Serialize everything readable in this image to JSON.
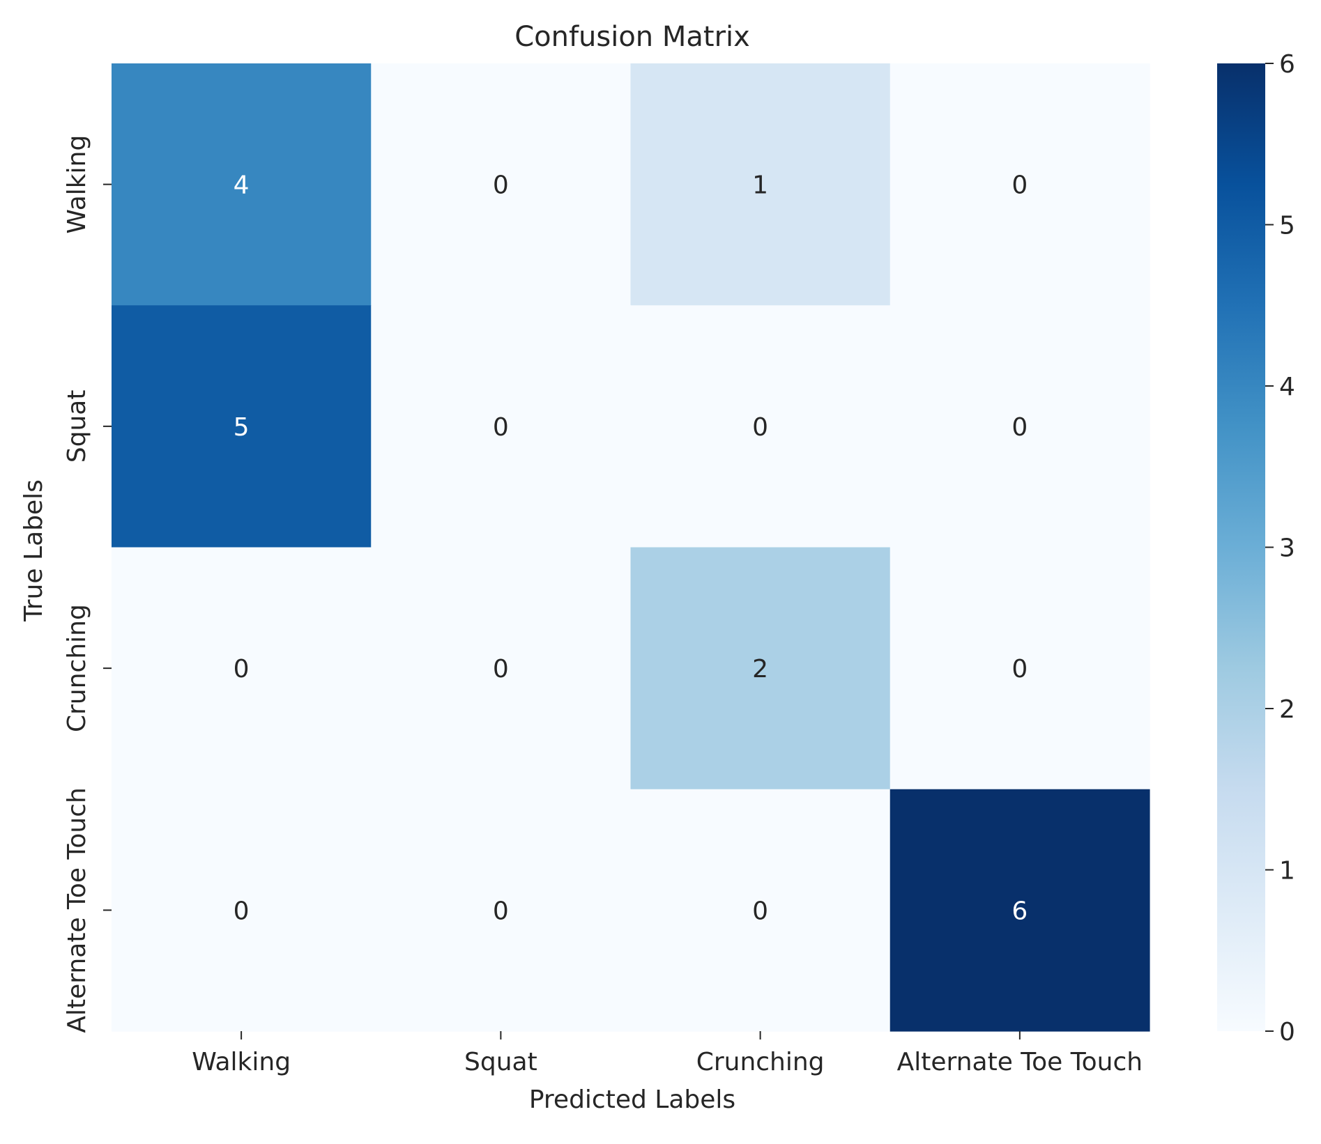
{
  "chart_data": {
    "type": "heatmap",
    "title": "Confusion Matrix",
    "xlabel": "Predicted Labels",
    "ylabel": "True Labels",
    "x_categories": [
      "Walking",
      "Squat",
      "Crunching",
      "Alternate Toe Touch"
    ],
    "y_categories": [
      "Walking",
      "Squat",
      "Crunching",
      "Alternate Toe Touch"
    ],
    "values": [
      [
        4,
        0,
        1,
        0
      ],
      [
        5,
        0,
        0,
        0
      ],
      [
        0,
        0,
        2,
        0
      ],
      [
        0,
        0,
        0,
        6
      ]
    ],
    "annotations": true,
    "colormap": "Blues",
    "color_range": [
      0,
      6
    ],
    "colorbar_ticks": [
      0,
      1,
      2,
      3,
      4,
      5,
      6
    ],
    "colorbar_placement": "right",
    "grid": false
  },
  "colors": {
    "text": "#262626",
    "annotation_light": "#ffffff",
    "annotation_dark": "#262626",
    "cmap_stops": [
      "#f7fbff",
      "#deebf7",
      "#c6dbef",
      "#9ecae1",
      "#6baed6",
      "#4292c6",
      "#2171b5",
      "#08519c",
      "#08306b"
    ]
  }
}
